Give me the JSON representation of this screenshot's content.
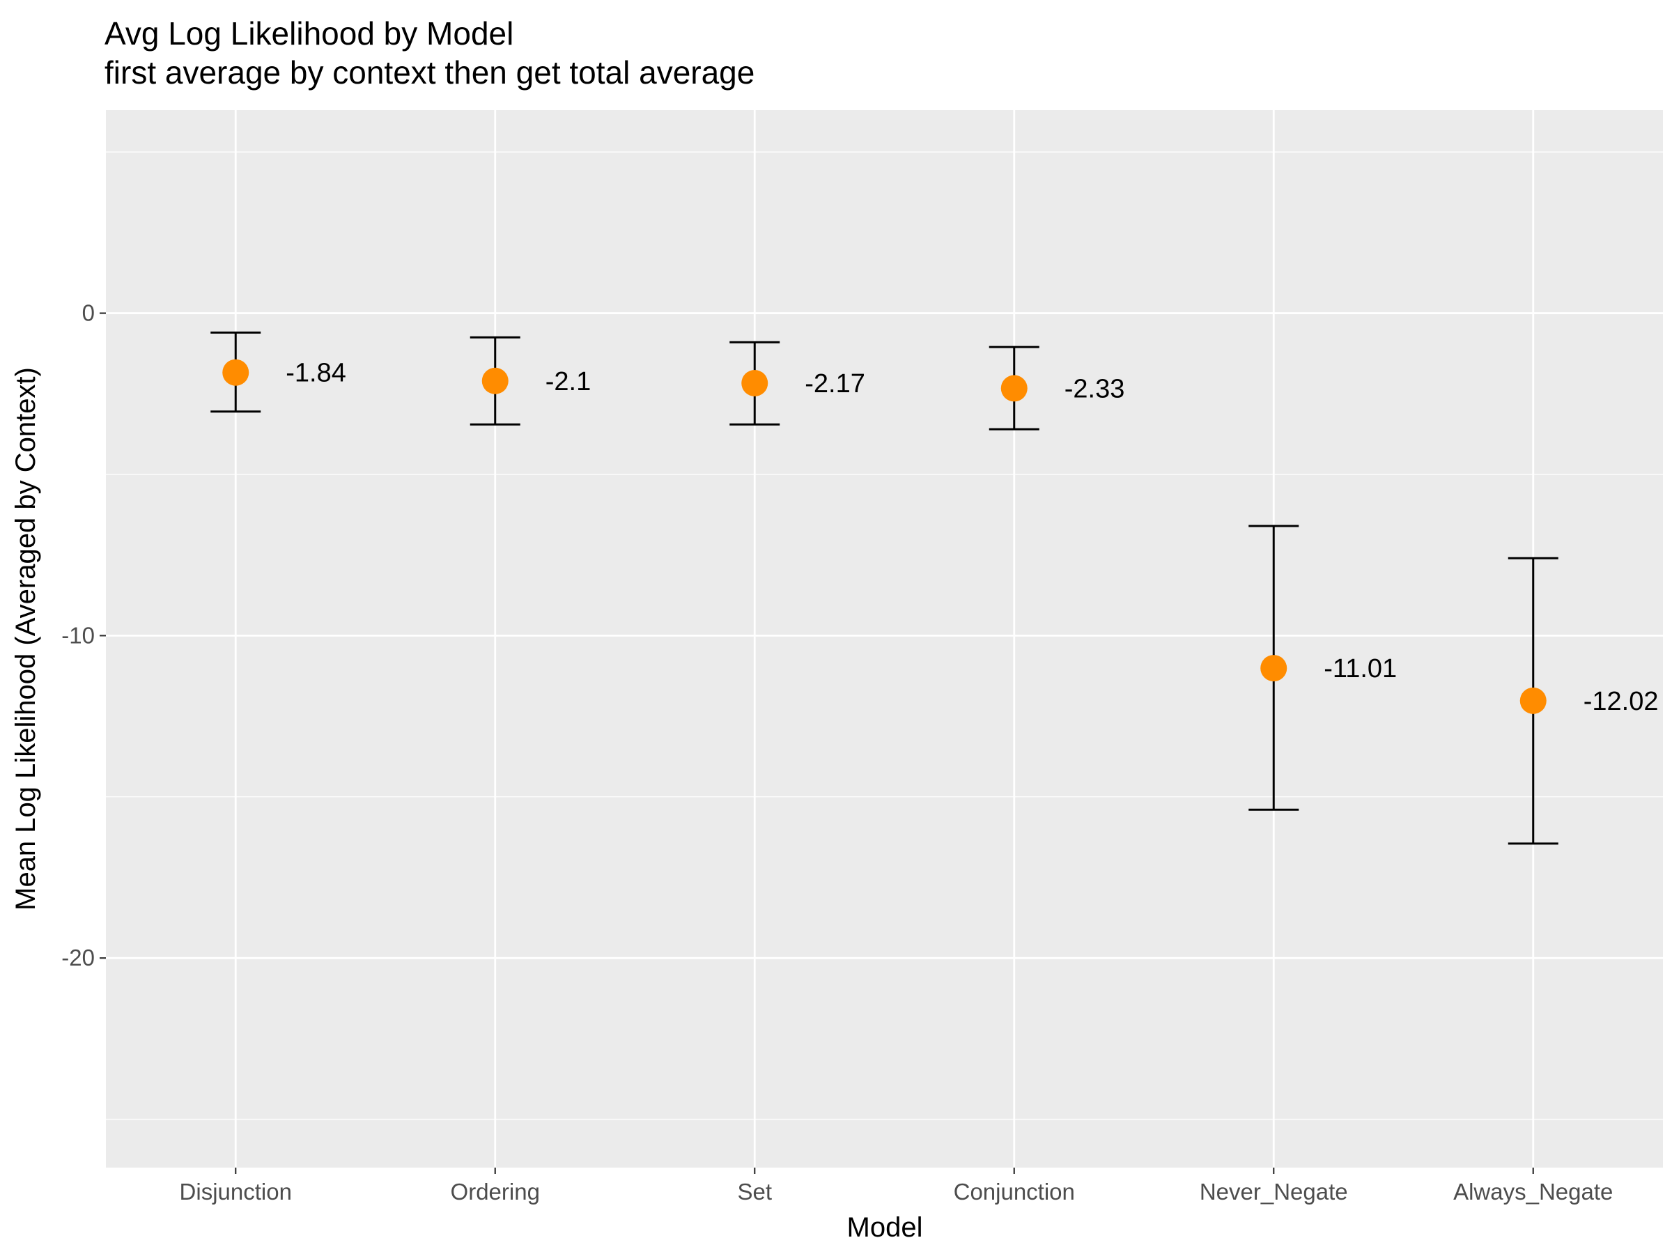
{
  "chart_data": {
    "type": "scatter",
    "title": "Avg Log Likelihood by Model",
    "subtitle": "first average by context then get total average",
    "xlabel": "Model",
    "ylabel": "Mean Log Likelihood (Averaged by Context)",
    "categories": [
      "Disjunction",
      "Ordering",
      "Set",
      "Conjunction",
      "Never_Negate",
      "Always_Negate"
    ],
    "values": [
      -1.84,
      -2.1,
      -2.17,
      -2.33,
      -11.01,
      -12.02
    ],
    "value_labels": [
      "-1.84",
      "-2.1",
      "-2.17",
      "-2.33",
      "-11.01",
      "-12.02"
    ],
    "error_lower": [
      -3.05,
      -3.45,
      -3.45,
      -3.6,
      -15.4,
      -16.45
    ],
    "error_upper": [
      -0.6,
      -0.75,
      -0.9,
      -1.05,
      -6.6,
      -7.6
    ],
    "ylim": [
      -26.5,
      6.3
    ],
    "yticks": [
      0,
      -10,
      -20
    ],
    "ytick_labels": [
      "0",
      "-10",
      "-20"
    ],
    "grid": true,
    "colors": {
      "point": "#ff8c00",
      "errorbar": "#000000",
      "panel": "#ebebeb",
      "grid": "#ffffff",
      "tick_text": "#4d4d4d"
    }
  }
}
